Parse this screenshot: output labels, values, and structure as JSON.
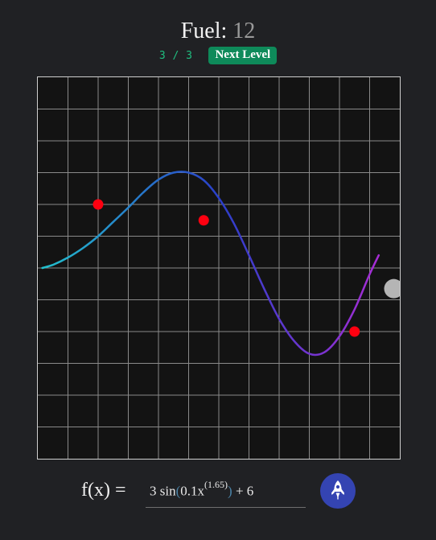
{
  "header": {
    "fuel_label": "Fuel:",
    "fuel_value": "12",
    "level_progress": "3 / 3",
    "next_level_label": "Next Level"
  },
  "formula": {
    "label": "f(x) =",
    "coefficient": "3",
    "function_name": "sin",
    "open_paren": "(",
    "inner_base": "0.1x",
    "exponent": "(1.65)",
    "close_paren": ")",
    "constant": "+ 6"
  },
  "launch_button": {
    "icon": "rocket-icon"
  },
  "game_plot": {
    "grid_columns": 12,
    "grid_rows": 12,
    "curve_gradient": [
      "#22c3cc",
      "#2a3fc9",
      "#b72ad6"
    ],
    "target_color": "#ff0010",
    "targets": [
      {
        "x": 2,
        "y": 8
      },
      {
        "x": 5.5,
        "y": 7.5
      },
      {
        "x": 10.5,
        "y": 4
      }
    ],
    "curve_points": [
      [
        0.15,
        6.0
      ],
      [
        0.5,
        6.1
      ],
      [
        1.0,
        6.33
      ],
      [
        1.5,
        6.63
      ],
      [
        2.0,
        7.0
      ],
      [
        2.5,
        7.45
      ],
      [
        3.0,
        7.9
      ],
      [
        3.5,
        8.38
      ],
      [
        4.0,
        8.78
      ],
      [
        4.5,
        9.0
      ],
      [
        5.0,
        9.0
      ],
      [
        5.5,
        8.76
      ],
      [
        6.0,
        8.2
      ],
      [
        6.5,
        7.4
      ],
      [
        7.0,
        6.4
      ],
      [
        7.5,
        5.35
      ],
      [
        8.0,
        4.4
      ],
      [
        8.5,
        3.7
      ],
      [
        9.0,
        3.3
      ],
      [
        9.5,
        3.35
      ],
      [
        10.0,
        3.85
      ],
      [
        10.5,
        4.7
      ],
      [
        11.0,
        5.8
      ],
      [
        11.3,
        6.4
      ]
    ],
    "rocket_position": {
      "x": 11.8,
      "y": 5.35
    },
    "rocket_color": "#b5b5b5"
  }
}
